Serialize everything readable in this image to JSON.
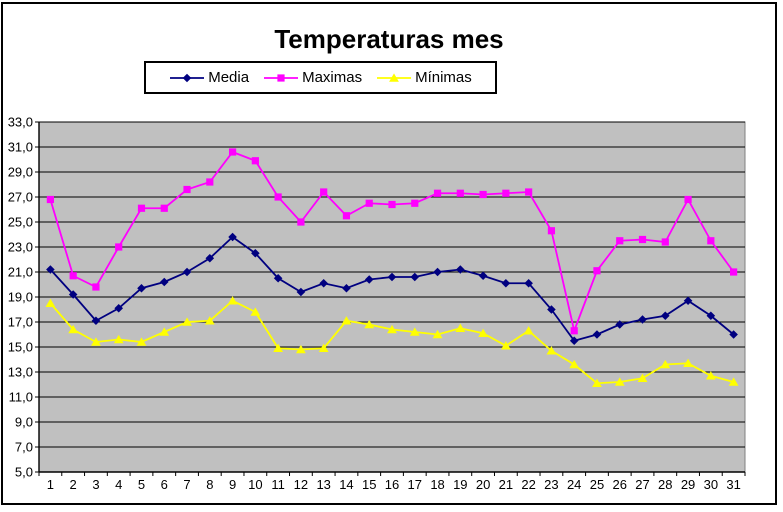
{
  "title": "Temperaturas mes",
  "colors": {
    "background": "#FFFFFF",
    "frame_border": "#000000",
    "plot_background": "#C0C0C0",
    "plot_border": "#808080",
    "gridline": "#000000",
    "axis": "#000000",
    "media": "#000080",
    "maximas": "#FF00FF",
    "minimas": "#FFFF00"
  },
  "chart_data": {
    "type": "line",
    "title": "Temperaturas mes",
    "xlabel": "",
    "ylabel": "",
    "legend_position": "top-center",
    "grid": "horizontal",
    "plot_bg": "#C0C0C0",
    "ylim": [
      5,
      33
    ],
    "y_tick_step": 2,
    "y_tick_labels": [
      "33,0",
      "31,0",
      "29,0",
      "27,0",
      "25,0",
      "23,0",
      "21,0",
      "19,0",
      "17,0",
      "15,0",
      "13,0",
      "11,0",
      "9,0",
      "7,0",
      "5,0"
    ],
    "x": [
      1,
      2,
      3,
      4,
      5,
      6,
      7,
      8,
      9,
      10,
      11,
      12,
      13,
      14,
      15,
      16,
      17,
      18,
      19,
      20,
      21,
      22,
      23,
      24,
      25,
      26,
      27,
      28,
      29,
      30,
      31
    ],
    "series": [
      {
        "name": "Media",
        "marker": "diamond",
        "color": "#000080",
        "values": [
          21.2,
          19.2,
          17.1,
          18.1,
          19.7,
          20.2,
          21.0,
          22.1,
          23.8,
          22.5,
          20.5,
          19.4,
          20.1,
          19.7,
          20.4,
          20.6,
          20.6,
          21.0,
          21.2,
          20.7,
          20.1,
          20.1,
          18.0,
          15.5,
          16.0,
          16.8,
          17.2,
          17.5,
          18.7,
          17.5,
          16.0
        ]
      },
      {
        "name": "Maximas",
        "marker": "square",
        "color": "#FF00FF",
        "values": [
          26.8,
          20.7,
          19.8,
          23.0,
          26.1,
          26.1,
          27.6,
          28.2,
          30.6,
          29.9,
          27.0,
          25.0,
          27.4,
          25.5,
          26.5,
          26.4,
          26.5,
          27.3,
          27.3,
          27.2,
          27.3,
          27.4,
          24.3,
          16.3,
          21.1,
          23.5,
          23.6,
          23.4,
          26.8,
          23.5,
          21.0
        ]
      },
      {
        "name": "Mínimas",
        "marker": "triangle",
        "color": "#FFFF00",
        "values": [
          18.5,
          16.4,
          15.4,
          15.6,
          15.4,
          16.2,
          17.0,
          17.1,
          18.7,
          17.8,
          14.9,
          14.8,
          14.9,
          17.1,
          16.8,
          16.4,
          16.2,
          16.0,
          16.5,
          16.1,
          15.1,
          16.3,
          14.7,
          13.6,
          12.1,
          12.2,
          12.5,
          13.6,
          13.7,
          12.7,
          12.2
        ]
      }
    ]
  }
}
